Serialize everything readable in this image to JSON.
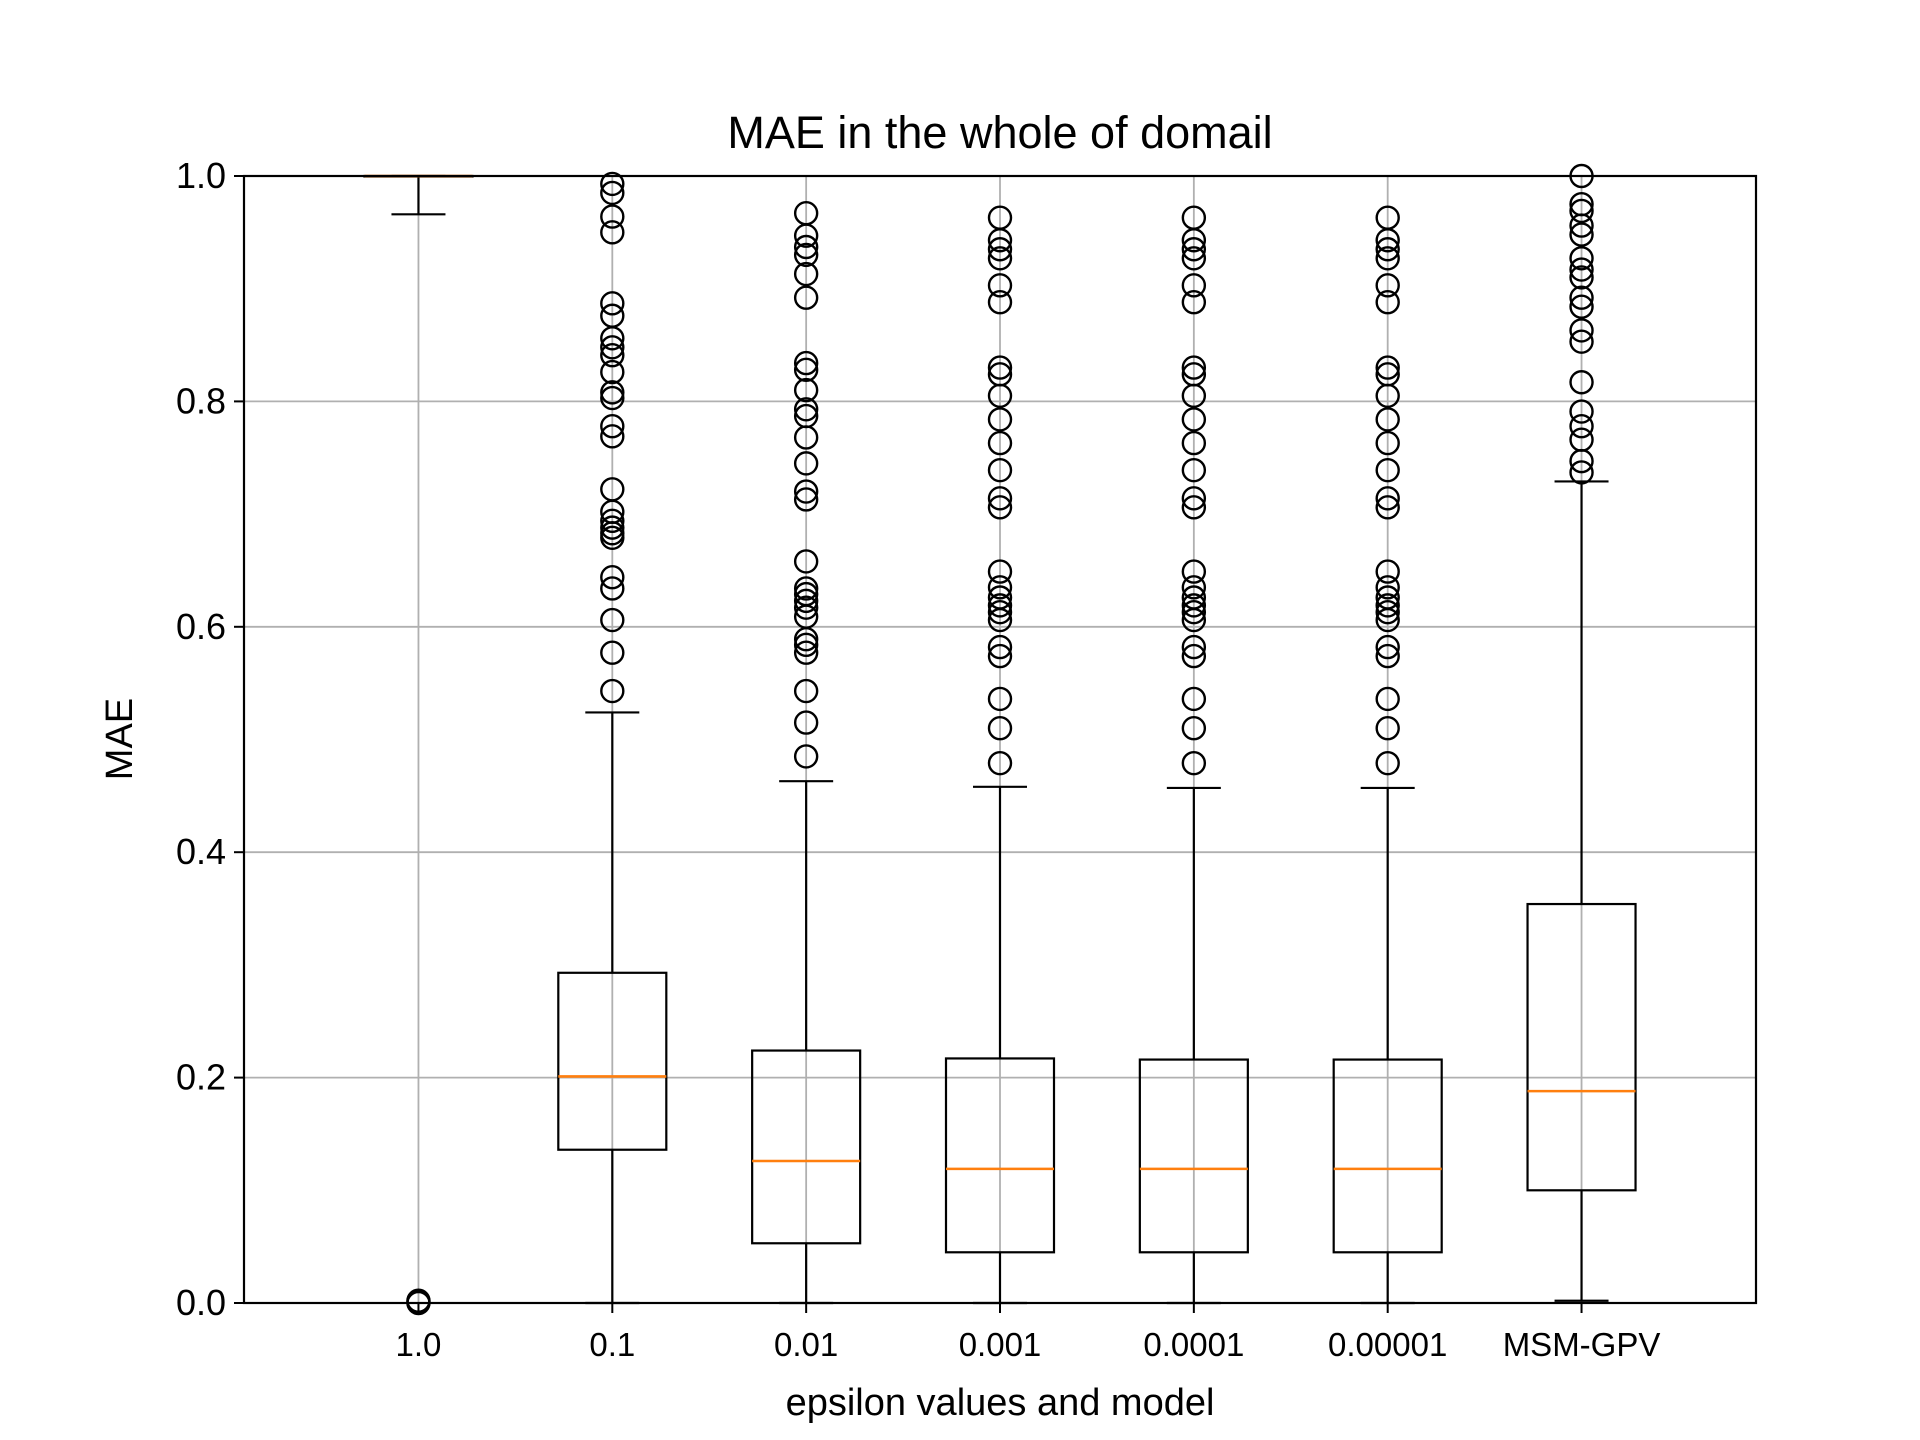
{
  "chart_data": {
    "type": "box",
    "title": "MAE in the whole of domail",
    "xlabel": "epsilon values and model",
    "ylabel": "MAE",
    "ylim": [
      0.0,
      1.0
    ],
    "yticks": [
      "0.0",
      "0.2",
      "0.4",
      "0.6",
      "0.8",
      "1.0"
    ],
    "grid": true,
    "colors": {
      "box": "#000000",
      "median": "#ff7f0e",
      "grid": "#b0b0b0"
    },
    "categories": [
      "1.0",
      "0.1",
      "0.01",
      "0.001",
      "0.0001",
      "0.00001",
      "MSM-GPV"
    ],
    "boxes": [
      {
        "label": "1.0",
        "whisker_low": 0.966,
        "q1": 1.0,
        "median": 1.0,
        "q3": 1.0,
        "whisker_high": 1.0,
        "outliers": [
          0.0,
          0.001,
          0.002
        ]
      },
      {
        "label": "0.1",
        "whisker_low": 0.0,
        "q1": 0.136,
        "median": 0.201,
        "q3": 0.293,
        "whisker_high": 0.524,
        "outliers": [
          0.543,
          0.577,
          0.606,
          0.634,
          0.644,
          0.679,
          0.683,
          0.688,
          0.694,
          0.702,
          0.722,
          0.769,
          0.778,
          0.803,
          0.808,
          0.826,
          0.841,
          0.848,
          0.856,
          0.876,
          0.887,
          0.95,
          0.964,
          0.985,
          0.993
        ]
      },
      {
        "label": "0.01",
        "whisker_low": 0.0,
        "q1": 0.053,
        "median": 0.126,
        "q3": 0.224,
        "whisker_high": 0.463,
        "outliers": [
          0.485,
          0.515,
          0.543,
          0.577,
          0.584,
          0.589,
          0.609,
          0.617,
          0.623,
          0.629,
          0.634,
          0.658,
          0.713,
          0.72,
          0.745,
          0.768,
          0.787,
          0.793,
          0.81,
          0.828,
          0.834,
          0.892,
          0.913,
          0.93,
          0.937,
          0.947,
          0.967
        ]
      },
      {
        "label": "0.001",
        "whisker_low": 0.0,
        "q1": 0.045,
        "median": 0.119,
        "q3": 0.217,
        "whisker_high": 0.458,
        "outliers": [
          0.479,
          0.51,
          0.536,
          0.574,
          0.582,
          0.606,
          0.613,
          0.619,
          0.626,
          0.635,
          0.649,
          0.706,
          0.714,
          0.739,
          0.763,
          0.784,
          0.805,
          0.824,
          0.83,
          0.888,
          0.903,
          0.927,
          0.935,
          0.943,
          0.963
        ]
      },
      {
        "label": "0.0001",
        "whisker_low": 0.0,
        "q1": 0.045,
        "median": 0.119,
        "q3": 0.216,
        "whisker_high": 0.457,
        "outliers": [
          0.479,
          0.51,
          0.536,
          0.574,
          0.582,
          0.606,
          0.613,
          0.619,
          0.626,
          0.635,
          0.649,
          0.706,
          0.714,
          0.739,
          0.763,
          0.784,
          0.805,
          0.824,
          0.83,
          0.888,
          0.903,
          0.927,
          0.935,
          0.943,
          0.963
        ]
      },
      {
        "label": "0.00001",
        "whisker_low": 0.0,
        "q1": 0.045,
        "median": 0.119,
        "q3": 0.216,
        "whisker_high": 0.457,
        "outliers": [
          0.479,
          0.51,
          0.536,
          0.574,
          0.582,
          0.606,
          0.613,
          0.619,
          0.626,
          0.635,
          0.649,
          0.706,
          0.714,
          0.739,
          0.763,
          0.784,
          0.805,
          0.824,
          0.83,
          0.888,
          0.903,
          0.927,
          0.935,
          0.943,
          0.963
        ]
      },
      {
        "label": "MSM-GPV",
        "whisker_low": 0.002,
        "q1": 0.1,
        "median": 0.188,
        "q3": 0.354,
        "whisker_high": 0.729,
        "outliers": [
          0.737,
          0.747,
          0.766,
          0.778,
          0.791,
          0.817,
          0.853,
          0.863,
          0.884,
          0.892,
          0.91,
          0.917,
          0.927,
          0.948,
          0.956,
          0.969,
          0.975,
          1.0
        ]
      }
    ]
  }
}
